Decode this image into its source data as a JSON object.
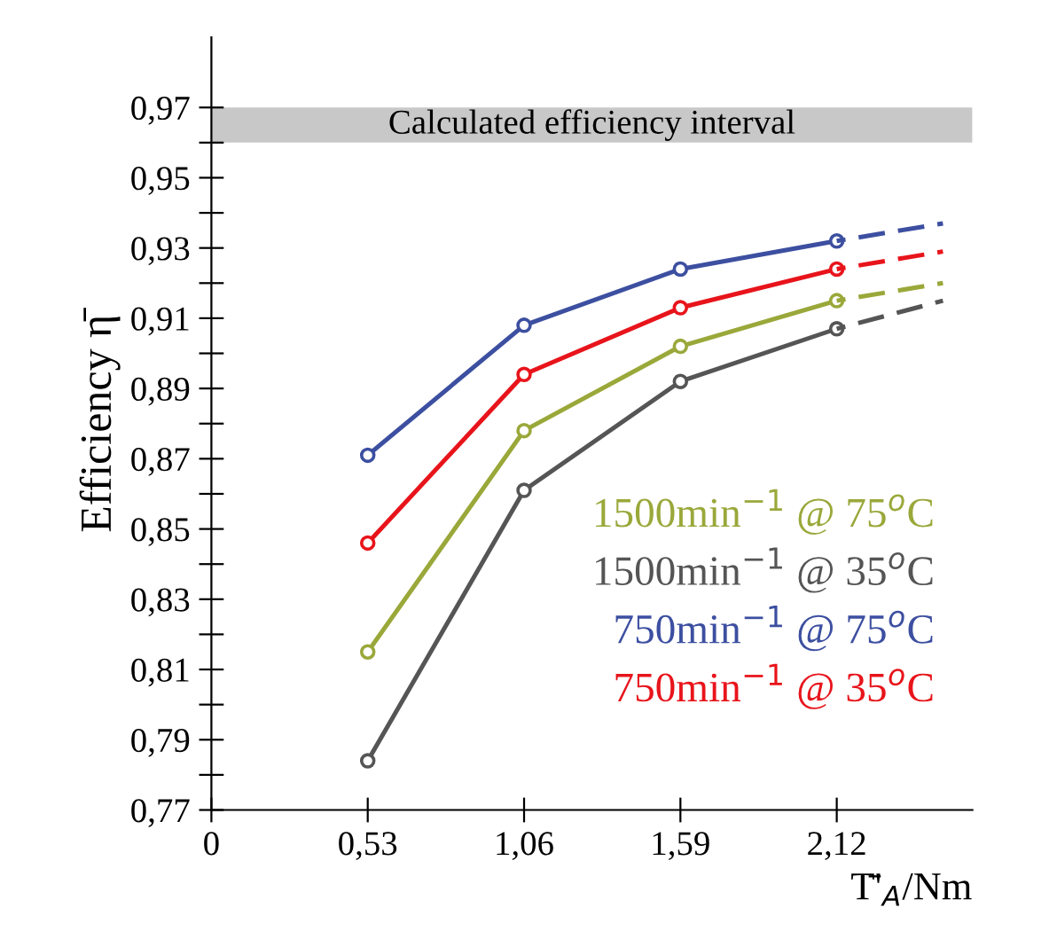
{
  "chart_data": {
    "type": "line",
    "xlabel": "T̄'$_{A}$/Nm",
    "ylabel": "Efficiency η̄",
    "x": [
      0.53,
      1.06,
      1.59,
      2.12,
      2.48
    ],
    "series": [
      {
        "name": "1500min$^{−1}$ @ 75$^{o}$C",
        "color": "#9aa83a",
        "values": [
          0.815,
          0.878,
          0.902,
          0.915,
          null
        ]
      },
      {
        "name": "1500min$^{−1}$ @ 35$^{o}$C",
        "color": "#555555",
        "values": [
          0.784,
          0.861,
          0.892,
          0.907,
          null
        ]
      },
      {
        "name": "750min$^{−1}$ @ 75$^{o}$C",
        "color": "#3c4fa0",
        "values": [
          0.871,
          0.908,
          0.924,
          0.932,
          null
        ]
      },
      {
        "name": "750min$^{−1}$ @ 35$^{o}$C",
        "color": "#e8141b",
        "values": [
          0.846,
          0.894,
          0.913,
          0.924,
          null
        ]
      },
      {
        "color": "#9aa83a",
        "values": [
          null,
          null,
          null,
          0.915,
          0.92
        ],
        "line_style": "dashed",
        "marker": "none"
      },
      {
        "color": "#555555",
        "values": [
          null,
          null,
          null,
          0.907,
          0.915
        ],
        "line_style": "dashed",
        "marker": "none"
      },
      {
        "color": "#3c4fa0",
        "values": [
          null,
          null,
          null,
          0.932,
          0.937
        ],
        "line_style": "dashed",
        "marker": "none"
      },
      {
        "color": "#e8141b",
        "values": [
          null,
          null,
          null,
          0.924,
          0.929
        ],
        "line_style": "dashed",
        "marker": "none"
      }
    ],
    "bands": [
      {
        "axis": "y",
        "from": 0.96,
        "to": 0.97,
        "color": "#c8c8c8"
      }
    ],
    "annotations": [
      "Calculated efficiency interval"
    ],
    "xlim": [
      0,
      2.58
    ],
    "ylim": [
      0.77,
      0.99
    ],
    "xticks": [
      0,
      {
        "value": 0.53,
        "label": "0,53"
      },
      {
        "value": 1.06,
        "label": "1,06"
      },
      {
        "value": 1.59,
        "label": "1,59"
      },
      {
        "value": 2.12,
        "label": "2,12"
      }
    ],
    "yticks": [
      {
        "value": 0.77,
        "label": "0,77"
      },
      {
        "value": 0.78,
        "label": null
      },
      {
        "value": 0.79,
        "label": "0,79"
      },
      {
        "value": 0.8,
        "label": null
      },
      {
        "value": 0.81,
        "label": "0,81"
      },
      {
        "value": 0.82,
        "label": null
      },
      {
        "value": 0.83,
        "label": "0,83"
      },
      {
        "value": 0.84,
        "label": null
      },
      {
        "value": 0.85,
        "label": "0,85"
      },
      {
        "value": 0.86,
        "label": null
      },
      {
        "value": 0.87,
        "label": "0,87"
      },
      {
        "value": 0.88,
        "label": null
      },
      {
        "value": 0.89,
        "label": "0,89"
      },
      {
        "value": 0.9,
        "label": null
      },
      {
        "value": 0.91,
        "label": "0,91"
      },
      {
        "value": 0.92,
        "label": null
      },
      {
        "value": 0.93,
        "label": "0,93"
      },
      {
        "value": 0.94,
        "label": null
      },
      {
        "value": 0.95,
        "label": "0,95"
      },
      {
        "value": 0.96,
        "label": null
      },
      {
        "value": 0.97,
        "label": "0,97"
      }
    ],
    "grid": false,
    "legend": "bottom right",
    "marker": "circle",
    "line_style": "solid"
  }
}
